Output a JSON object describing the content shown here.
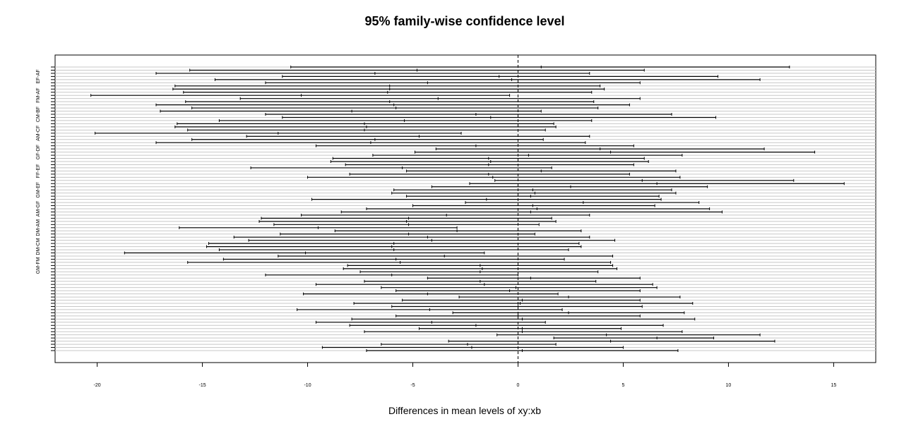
{
  "chart_data": {
    "type": "interval",
    "title": "95% family-wise confidence level",
    "xlabel": "Differences in mean levels of xy:xb",
    "ylabel": "",
    "xlim": [
      -22,
      17
    ],
    "x_ticks": [
      -20,
      -15,
      -10,
      -5,
      0,
      5,
      10,
      15
    ],
    "x_tick_labels": [
      "-20",
      "-15",
      "-10",
      "-5",
      "0",
      "5",
      "10",
      "15"
    ],
    "reference_line": 0,
    "y_tick_labels": [
      {
        "label": "EF-AF",
        "row": 3
      },
      {
        "label": "FM-AF",
        "row": 9
      },
      {
        "label": "CM-BF",
        "row": 15
      },
      {
        "label": "AM-CF",
        "row": 21
      },
      {
        "label": "GF-DF",
        "row": 27
      },
      {
        "label": "FF-EF",
        "row": 33
      },
      {
        "label": "GM-EF",
        "row": 39
      },
      {
        "label": "AM-GF",
        "row": 45
      },
      {
        "label": "DM-AM",
        "row": 51
      },
      {
        "label": "DM-CM",
        "row": 57
      },
      {
        "label": "GM-FM",
        "row": 63
      }
    ],
    "intervals": [
      [
        -10.8,
        1.1,
        12.9
      ],
      [
        -15.6,
        -4.8,
        6.0
      ],
      [
        -17.2,
        -6.8,
        3.4
      ],
      [
        -11.2,
        -0.9,
        9.5
      ],
      [
        -14.4,
        -0.3,
        11.5
      ],
      [
        -12.0,
        -4.3,
        5.8
      ],
      [
        -16.3,
        -6.1,
        3.9
      ],
      [
        -16.4,
        -6.1,
        4.1
      ],
      [
        -15.9,
        -6.2,
        3.5
      ],
      [
        -20.3,
        -10.3,
        -0.4
      ],
      [
        -13.2,
        -3.8,
        5.8
      ],
      [
        -15.8,
        -6.1,
        3.6
      ],
      [
        -17.2,
        -5.9,
        5.3
      ],
      [
        -15.5,
        -5.8,
        3.8
      ],
      [
        -17.0,
        -7.9,
        1.1
      ],
      [
        -12.0,
        -2.0,
        7.3
      ],
      [
        -11.2,
        -1.3,
        9.4
      ],
      [
        -14.2,
        -5.4,
        3.5
      ],
      [
        -16.2,
        -7.3,
        1.7
      ],
      [
        -16.3,
        -7.2,
        1.8
      ],
      [
        -15.7,
        -7.3,
        1.3
      ],
      [
        -20.1,
        -11.4,
        -2.7
      ],
      [
        -12.9,
        -4.7,
        3.4
      ],
      [
        -15.5,
        -6.8,
        1.2
      ],
      [
        -17.2,
        -7.0,
        3.2
      ],
      [
        -9.6,
        -2.0,
        5.5
      ],
      [
        -3.9,
        3.9,
        11.7
      ],
      [
        -4.9,
        4.4,
        14.1
      ],
      [
        -6.9,
        0.5,
        7.8
      ],
      [
        -8.8,
        -1.4,
        6.0
      ],
      [
        -8.9,
        -1.3,
        6.2
      ],
      [
        -8.2,
        -1.4,
        5.5
      ],
      [
        -12.7,
        -5.5,
        1.6
      ],
      [
        -5.3,
        1.1,
        7.5
      ],
      [
        -8.0,
        -1.4,
        5.3
      ],
      [
        -10.0,
        -1.2,
        7.7
      ],
      [
        -1.1,
        5.9,
        13.1
      ],
      [
        -2.3,
        6.6,
        15.5
      ],
      [
        -4.1,
        2.5,
        9.0
      ],
      [
        -5.9,
        0.7,
        7.3
      ],
      [
        -6.0,
        0.8,
        7.5
      ],
      [
        -5.3,
        0.6,
        6.7
      ],
      [
        -9.8,
        -1.5,
        6.8
      ],
      [
        -2.5,
        3.1,
        8.6
      ],
      [
        -5.0,
        0.7,
        6.5
      ],
      [
        -7.2,
        0.9,
        9.1
      ],
      [
        -8.4,
        0.6,
        9.7
      ],
      [
        -10.3,
        -3.4,
        3.4
      ],
      [
        -12.2,
        -5.2,
        1.6
      ],
      [
        -12.3,
        -5.3,
        1.8
      ],
      [
        -11.6,
        -5.2,
        1.0
      ],
      [
        -16.1,
        -9.5,
        -2.9
      ],
      [
        -8.7,
        -2.9,
        3.0
      ],
      [
        -11.3,
        -5.2,
        0.8
      ],
      [
        -13.5,
        -4.3,
        3.4
      ],
      [
        -12.8,
        -4.1,
        4.6
      ],
      [
        -14.7,
        -5.9,
        2.9
      ],
      [
        -14.8,
        -6.0,
        3.0
      ],
      [
        -14.2,
        -5.9,
        2.4
      ],
      [
        -18.7,
        -10.1,
        -1.6
      ],
      [
        -11.4,
        -3.5,
        4.5
      ],
      [
        -14.0,
        -5.8,
        2.2
      ],
      [
        -15.7,
        -5.6,
        4.4
      ],
      [
        -8.1,
        -1.8,
        4.5
      ],
      [
        -8.3,
        -1.7,
        4.7
      ],
      [
        -7.5,
        -1.8,
        3.8
      ],
      [
        -12.0,
        -6.0,
        0.0
      ],
      [
        -4.3,
        0.6,
        5.8
      ],
      [
        -7.3,
        -1.8,
        3.7
      ],
      [
        -9.6,
        -1.6,
        6.4
      ],
      [
        -6.5,
        -0.1,
        6.6
      ],
      [
        -5.8,
        -0.4,
        5.8
      ],
      [
        -10.2,
        -4.3,
        1.9
      ],
      [
        -2.8,
        2.4,
        7.7
      ],
      [
        -5.5,
        0.2,
        5.8
      ],
      [
        -7.8,
        0.1,
        8.3
      ],
      [
        -6.0,
        0.0,
        5.9
      ],
      [
        -10.5,
        -4.2,
        2.1
      ],
      [
        -3.1,
        2.4,
        7.9
      ],
      [
        -5.8,
        0.0,
        5.8
      ],
      [
        -7.9,
        0.2,
        8.4
      ],
      [
        -9.6,
        -4.1,
        1.3
      ],
      [
        -8.0,
        -2.0,
        6.9
      ],
      [
        -4.7,
        0.2,
        4.9
      ],
      [
        -7.3,
        0.2,
        7.8
      ],
      [
        -1.0,
        4.2,
        11.5
      ],
      [
        1.7,
        6.6,
        9.3
      ],
      [
        -3.3,
        4.4,
        12.2
      ],
      [
        -6.5,
        -2.4,
        1.8
      ],
      [
        -9.3,
        -2.2,
        5.0
      ],
      [
        -7.2,
        0.2,
        7.6
      ]
    ]
  }
}
